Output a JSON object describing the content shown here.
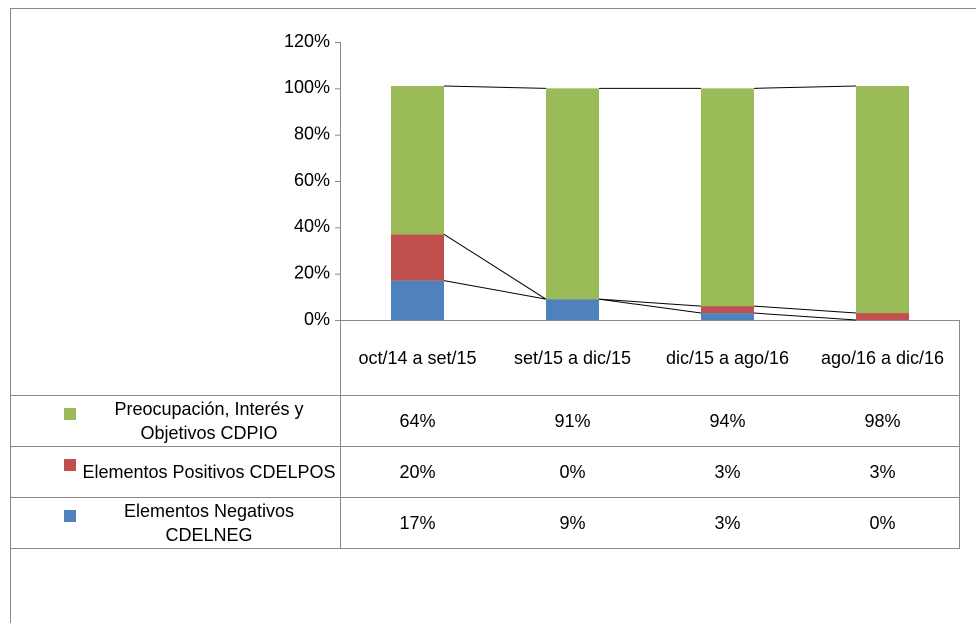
{
  "chart_data": {
    "type": "stacked_bar",
    "categories": [
      "oct/14 a set/15",
      "set/15 a dic/15",
      "dic/15 a ago/16",
      "ago/16 a dic/16"
    ],
    "series": [
      {
        "name": "Preocupación, Interés y Objetivos CDPIO",
        "color": "#9bbb59",
        "values": [
          64,
          91,
          94,
          98
        ],
        "value_labels": [
          "64%",
          "91%",
          "94%",
          "98%"
        ]
      },
      {
        "name": "Elementos Positivos CDELPOS",
        "color": "#c0504d",
        "values": [
          20,
          0,
          3,
          3
        ],
        "value_labels": [
          "20%",
          "0%",
          "3%",
          "3%"
        ]
      },
      {
        "name": "Elementos Negativos CDELNEG",
        "color": "#4f81bd",
        "values": [
          17,
          9,
          3,
          0
        ],
        "value_labels": [
          "17%",
          "9%",
          "3%",
          "0%"
        ]
      }
    ],
    "ylim": [
      0,
      120
    ],
    "yticks": [
      {
        "value": 0,
        "label": "0%"
      },
      {
        "value": 20,
        "label": "20%"
      },
      {
        "value": 40,
        "label": "40%"
      },
      {
        "value": 60,
        "label": "60%"
      },
      {
        "value": 80,
        "label": "80%"
      },
      {
        "value": 100,
        "label": "100%"
      },
      {
        "value": 120,
        "label": "120%"
      }
    ],
    "grid": false
  }
}
